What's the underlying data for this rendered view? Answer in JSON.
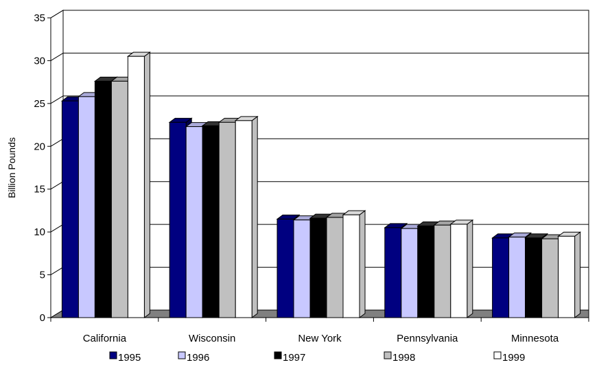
{
  "chart_data": {
    "type": "bar",
    "title": "",
    "xlabel": "",
    "ylabel": "Billion Pounds",
    "ylim": [
      0,
      35
    ],
    "yticks": [
      0,
      5,
      10,
      15,
      20,
      25,
      30,
      35
    ],
    "grid": true,
    "three_d": true,
    "legend_position": "bottom",
    "categories": [
      "California",
      "Wisconsin",
      "New York",
      "Pennsylvania",
      "Minnesota"
    ],
    "series": [
      {
        "name": "1995",
        "color": "#000080",
        "values": [
          25.3,
          22.8,
          11.5,
          10.5,
          9.3
        ]
      },
      {
        "name": "1996",
        "color": "#c8c8ff",
        "values": [
          25.8,
          22.3,
          11.4,
          10.4,
          9.4
        ]
      },
      {
        "name": "1997",
        "color": "#000000",
        "values": [
          27.6,
          22.4,
          11.6,
          10.7,
          9.3
        ]
      },
      {
        "name": "1998",
        "color": "#c0c0c0",
        "values": [
          27.6,
          22.8,
          11.7,
          10.8,
          9.2
        ]
      },
      {
        "name": "1999",
        "color": "#ffffff",
        "values": [
          30.5,
          23.0,
          12.0,
          10.9,
          9.5
        ]
      }
    ]
  }
}
